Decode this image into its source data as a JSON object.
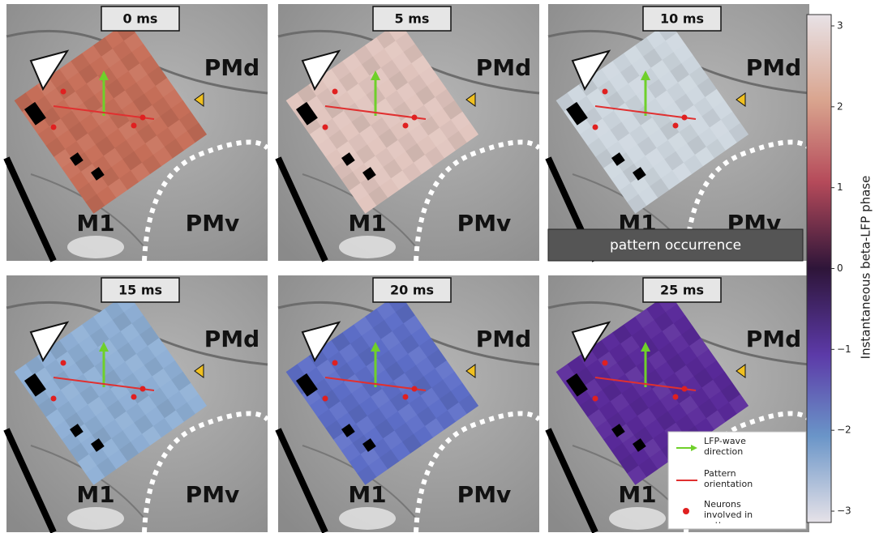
{
  "panels": [
    {
      "time": "0 ms",
      "regions": {
        "dorsal": "PMd",
        "primary": "M1",
        "ventral": "PMv"
      },
      "color": "#c8705a"
    },
    {
      "time": "5 ms",
      "regions": {
        "dorsal": "PMd",
        "primary": "M1",
        "ventral": "PMv"
      },
      "color": "#e2c6bf"
    },
    {
      "time": "10 ms",
      "regions": {
        "dorsal": "PMd",
        "primary": "M1",
        "ventral": "PMv"
      },
      "color": "#cfd8e0",
      "banner": "pattern occurrence"
    },
    {
      "time": "15 ms",
      "regions": {
        "dorsal": "PMd",
        "primary": "M1",
        "ventral": "PMv"
      },
      "color": "#8fb0d6"
    },
    {
      "time": "20 ms",
      "regions": {
        "dorsal": "PMd",
        "primary": "M1",
        "ventral": "PMv"
      },
      "color": "#5e6fc9"
    },
    {
      "time": "25 ms",
      "regions": {
        "dorsal": "PMd",
        "primary": "M1",
        "ventral": "PMv"
      },
      "color": "#5a2a9a"
    }
  ],
  "legend": {
    "arrow": "LFP-wave direction",
    "line": "Pattern orientation",
    "dots": "Neurons involved in pattern"
  },
  "colorbar": {
    "label": "Instantaneous beta-LFP phase",
    "range": [
      -3.14,
      3.14
    ],
    "ticks": [
      3,
      2,
      1,
      0,
      {
        "value": -1,
        "label": "−1"
      },
      {
        "value": -2,
        "label": "−2"
      },
      {
        "value": -3,
        "label": "−3"
      }
    ]
  }
}
